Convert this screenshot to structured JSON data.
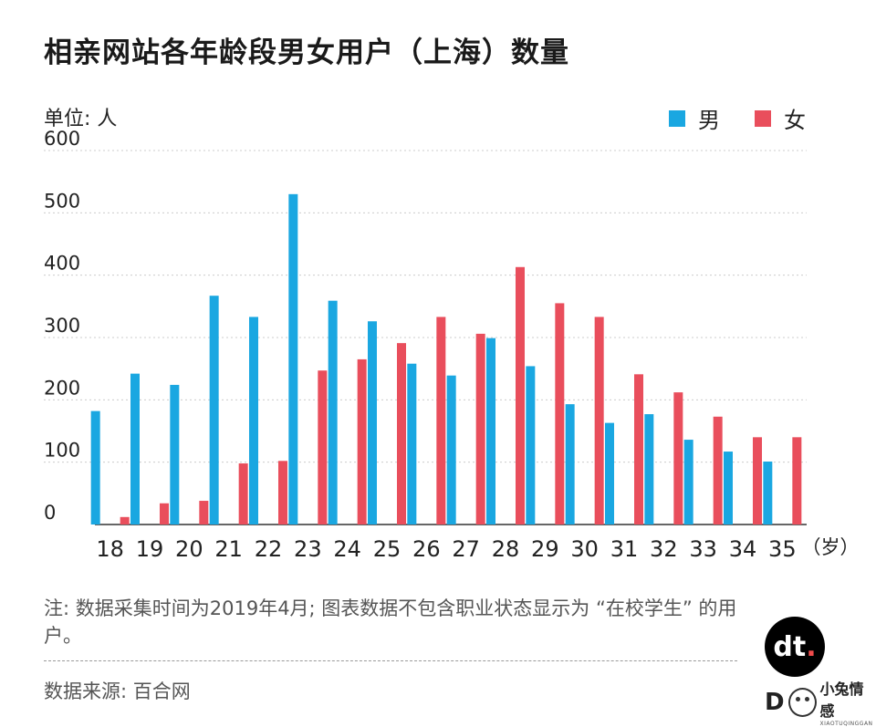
{
  "title": "相亲网站各年龄段男女用户（上海）数量",
  "unit_label": "单位: 人",
  "colors": {
    "male": "#1AA7E1",
    "female": "#E94E5C",
    "grid": "#CCCCCC"
  },
  "legend": {
    "male": "男",
    "female": "女"
  },
  "x_unit_label": "（岁）",
  "note": "注: 数据采集时间为2019年4月; 图表数据不包含职业状态显示为 “在校学生” 的用户。",
  "source": "数据来源: 百合网",
  "logo": {
    "text": "dt",
    "dot": "."
  },
  "watermark": {
    "letter": "D",
    "cn": "小兔情感",
    "en": "XIAOTUQINGGAN"
  },
  "chart_data": {
    "type": "bar",
    "title": "相亲网站各年龄段男女用户（上海）数量",
    "ylabel": "单位: 人",
    "xlabel": "（岁）",
    "ylim": [
      0,
      600
    ],
    "yticks": [
      0,
      100,
      200,
      300,
      400,
      500,
      600
    ],
    "grid": true,
    "legend_position": "top-right",
    "categories": [
      "18",
      "19",
      "20",
      "21",
      "22",
      "23",
      "24",
      "25",
      "26",
      "27",
      "28",
      "29",
      "30",
      "31",
      "32",
      "33",
      "34",
      "35"
    ],
    "series": [
      {
        "name": "男",
        "values": [
          182,
          242,
          224,
          367,
          333,
          530,
          359,
          326,
          258,
          239,
          299,
          254,
          193,
          163,
          177,
          136,
          117,
          101
        ]
      },
      {
        "name": "女",
        "values": [
          12,
          34,
          38,
          98,
          102,
          247,
          265,
          291,
          333,
          306,
          413,
          355,
          333,
          241,
          212,
          173,
          140,
          140
        ]
      }
    ]
  }
}
